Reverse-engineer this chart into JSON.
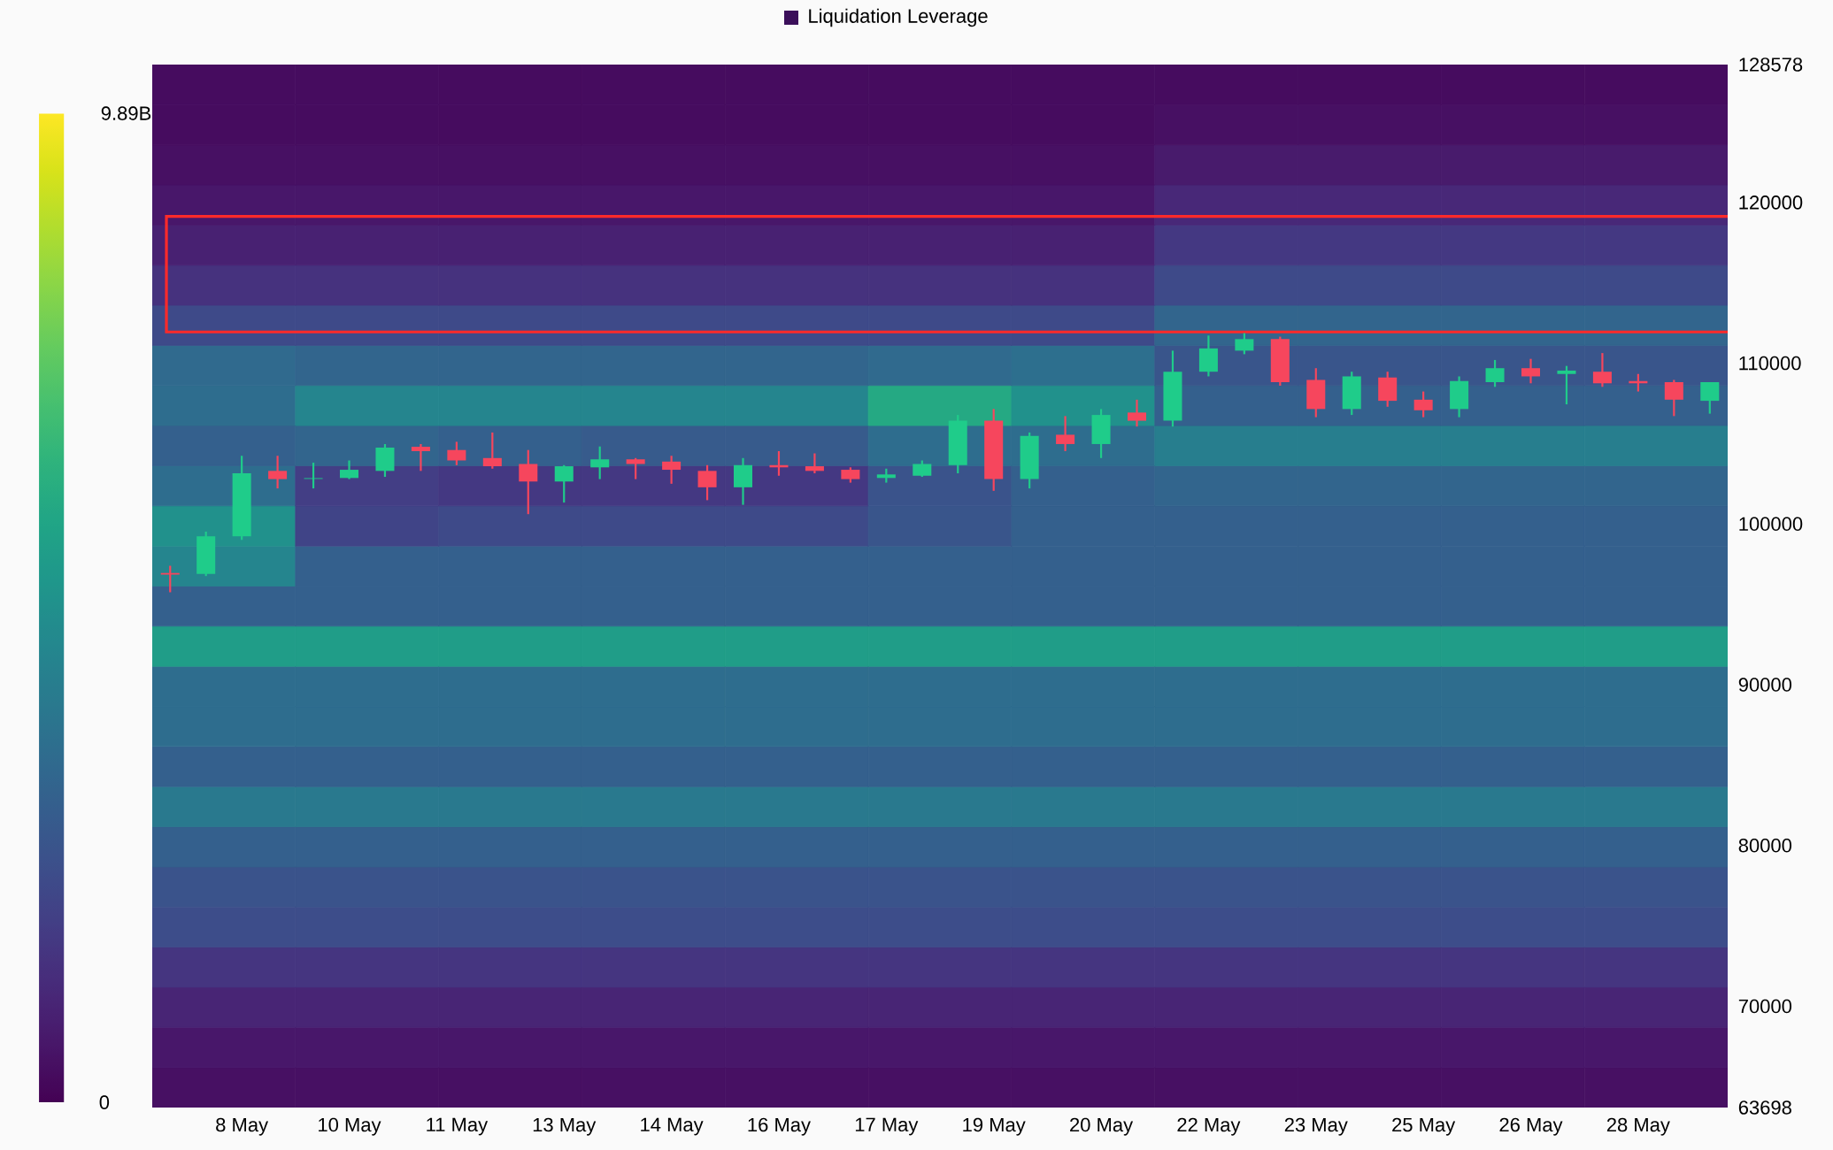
{
  "chart_data": [
    {
      "type": "heatmap",
      "legend_title": "Liquidation Leverage",
      "tick_labels": false,
      "categories": [
        null,
        null,
        null,
        null,
        null,
        null,
        null,
        null,
        null,
        null,
        null
      ],
      "y_categories": [
        null,
        null,
        null,
        null,
        null,
        null,
        null,
        null,
        null,
        null,
        null,
        null,
        null,
        null,
        null,
        null,
        null,
        null,
        null,
        null,
        null,
        null,
        null,
        null,
        null,
        null
      ],
      "cells": [
        [
          0.3,
          0.3,
          0.3,
          0.3,
          0.3,
          0.3,
          0.3,
          0.3,
          0.3,
          0.3,
          0.3
        ],
        [
          0.3,
          0.3,
          0.3,
          0.3,
          0.3,
          0.3,
          0.3,
          0.4,
          0.4,
          0.4,
          0.4
        ],
        [
          0.4,
          0.4,
          0.4,
          0.4,
          0.4,
          0.4,
          0.4,
          0.7,
          0.7,
          0.7,
          0.7
        ],
        [
          0.6,
          0.6,
          0.6,
          0.6,
          0.6,
          0.6,
          0.6,
          1.1,
          1.1,
          1.1,
          1.1
        ],
        [
          0.9,
          0.9,
          0.9,
          0.9,
          0.9,
          0.9,
          0.9,
          1.6,
          1.6,
          1.6,
          1.6
        ],
        [
          1.4,
          1.4,
          1.4,
          1.4,
          1.4,
          1.4,
          1.4,
          2.2,
          2.2,
          2.2,
          2.2
        ],
        [
          2.2,
          2.2,
          2.2,
          2.2,
          2.2,
          2.2,
          2.2,
          3.2,
          3.2,
          3.2,
          3.2
        ],
        [
          3.4,
          3.2,
          3.2,
          3.2,
          3.2,
          3.4,
          3.6,
          2.6,
          2.6,
          2.6,
          2.6
        ],
        [
          3.5,
          4.5,
          4.5,
          4.5,
          4.5,
          6.0,
          5.0,
          3.0,
          3.0,
          3.0,
          3.0
        ],
        [
          3.0,
          3.2,
          3.0,
          2.8,
          2.8,
          3.5,
          3.5,
          4.2,
          4.2,
          4.2,
          4.2
        ],
        [
          3.5,
          1.8,
          1.6,
          1.6,
          1.6,
          2.5,
          3.0,
          3.2,
          3.2,
          3.2,
          3.2
        ],
        [
          5.0,
          2.0,
          2.2,
          2.2,
          2.2,
          2.6,
          3.0,
          3.0,
          3.0,
          3.0,
          3.0
        ],
        [
          4.5,
          3.0,
          3.0,
          3.0,
          3.0,
          3.0,
          3.0,
          3.0,
          3.0,
          3.0,
          3.0
        ],
        [
          3.0,
          3.0,
          3.0,
          3.0,
          3.0,
          3.0,
          3.0,
          3.0,
          3.0,
          3.0,
          3.0
        ],
        [
          5.5,
          5.5,
          5.5,
          5.5,
          5.5,
          5.5,
          5.5,
          5.5,
          5.5,
          5.5,
          5.5
        ],
        [
          3.5,
          3.5,
          3.5,
          3.5,
          3.5,
          3.5,
          3.5,
          3.5,
          3.5,
          3.5,
          3.5
        ],
        [
          3.5,
          3.5,
          3.5,
          3.5,
          3.5,
          3.5,
          3.5,
          3.5,
          3.5,
          3.5,
          3.5
        ],
        [
          3.0,
          3.0,
          3.0,
          3.0,
          3.0,
          3.0,
          3.0,
          3.0,
          3.0,
          3.0,
          3.0
        ],
        [
          4.0,
          4.0,
          4.0,
          4.0,
          4.0,
          4.0,
          4.0,
          4.0,
          4.0,
          4.0,
          4.0
        ],
        [
          3.0,
          3.0,
          3.0,
          3.0,
          3.0,
          3.0,
          3.0,
          3.0,
          3.0,
          3.0,
          3.0
        ],
        [
          2.5,
          2.5,
          2.5,
          2.5,
          2.5,
          2.5,
          2.5,
          2.5,
          2.5,
          2.5,
          2.5
        ],
        [
          2.3,
          2.3,
          2.3,
          2.3,
          2.3,
          2.3,
          2.3,
          2.3,
          2.3,
          2.3,
          2.3
        ],
        [
          1.5,
          1.5,
          1.5,
          1.5,
          1.5,
          1.5,
          1.5,
          1.5,
          1.5,
          1.5,
          1.5
        ],
        [
          1.0,
          1.0,
          1.0,
          1.0,
          1.0,
          1.0,
          1.0,
          1.0,
          1.0,
          1.0,
          1.0
        ],
        [
          0.6,
          0.6,
          0.6,
          0.6,
          0.6,
          0.6,
          0.6,
          0.6,
          0.6,
          0.6,
          0.6
        ],
        [
          0.4,
          0.4,
          0.4,
          0.4,
          0.4,
          0.4,
          0.4,
          0.4,
          0.4,
          0.4,
          0.4
        ]
      ],
      "clim": [
        0,
        9.89
      ],
      "cticks": [
        {
          "value": 0,
          "label": "0"
        },
        {
          "value": 9.89,
          "label": "9.89B"
        }
      ]
    },
    {
      "type": "candlestick",
      "categories": [
        null,
        null,
        "8 May",
        null,
        null,
        "10 May",
        null,
        null,
        "11 May",
        null,
        null,
        "13 May",
        null,
        null,
        "14 May",
        null,
        null,
        "16 May",
        null,
        null,
        "17 May",
        null,
        null,
        "19 May",
        null,
        null,
        "20 May",
        null,
        null,
        "22 May",
        null,
        null,
        "23 May",
        null,
        null,
        "25 May",
        null,
        null,
        "26 May",
        null,
        null,
        "28 May",
        null,
        null
      ],
      "ohlc": [
        [
          96950,
          97400,
          95750,
          96850
        ],
        [
          96900,
          99520,
          96760,
          99230
        ],
        [
          99230,
          104240,
          99010,
          103150
        ],
        [
          103300,
          104240,
          102210,
          102790
        ],
        [
          102800,
          103810,
          102210,
          102850
        ],
        [
          102860,
          103950,
          102790,
          103370
        ],
        [
          103300,
          104970,
          102930,
          104750
        ],
        [
          104800,
          104970,
          103300,
          104530
        ],
        [
          104600,
          105110,
          103660,
          103950
        ],
        [
          104100,
          105690,
          103440,
          103590
        ],
        [
          103730,
          104600,
          100610,
          102640
        ],
        [
          102640,
          103660,
          101330,
          103590
        ],
        [
          103520,
          104820,
          102790,
          104020
        ],
        [
          104020,
          104100,
          102790,
          103730
        ],
        [
          103880,
          104240,
          102500,
          103370
        ],
        [
          103300,
          103660,
          101480,
          102280
        ],
        [
          102280,
          104100,
          101190,
          103660
        ],
        [
          103660,
          104530,
          103000,
          103520
        ],
        [
          103590,
          104390,
          103150,
          103300
        ],
        [
          103370,
          103520,
          102570,
          102790
        ],
        [
          102860,
          103440,
          102570,
          103080
        ],
        [
          103000,
          103950,
          102930,
          103730
        ],
        [
          103660,
          106780,
          103150,
          106420
        ],
        [
          106420,
          107150,
          102060,
          102790
        ],
        [
          102790,
          105690,
          102210,
          105480
        ],
        [
          105550,
          106710,
          104530,
          104970
        ],
        [
          104970,
          107150,
          104100,
          106780
        ],
        [
          106930,
          107730,
          106060,
          106420
        ],
        [
          106420,
          110780,
          106060,
          109470
        ],
        [
          109470,
          111720,
          109180,
          110920
        ],
        [
          110780,
          111870,
          110560,
          111500
        ],
        [
          111500,
          111650,
          108600,
          108820
        ],
        [
          108960,
          109690,
          106640,
          107150
        ],
        [
          107150,
          109470,
          106780,
          109180
        ],
        [
          109110,
          109470,
          107290,
          107660
        ],
        [
          107730,
          108240,
          106640,
          107070
        ],
        [
          107150,
          109180,
          106640,
          108890
        ],
        [
          108820,
          110200,
          108530,
          109690
        ],
        [
          109690,
          110270,
          108750,
          109180
        ],
        [
          109330,
          109830,
          107440,
          109540
        ],
        [
          109470,
          110630,
          108530,
          108750
        ],
        [
          108890,
          109330,
          108240,
          108750
        ],
        [
          108820,
          108960,
          106710,
          107730
        ],
        [
          107660,
          108820,
          106860,
          108820
        ]
      ],
      "colors": [
        "#f6465d",
        "#1fcc8a",
        "#1fcc8a",
        "#f6465d",
        "#1fcc8a",
        "#1fcc8a",
        "#1fcc8a",
        "#f6465d",
        "#f6465d",
        "#f6465d",
        "#f6465d",
        "#1fcc8a",
        "#1fcc8a",
        "#f6465d",
        "#f6465d",
        "#f6465d",
        "#1fcc8a",
        "#f6465d",
        "#f6465d",
        "#f6465d",
        "#1fcc8a",
        "#1fcc8a",
        "#1fcc8a",
        "#f6465d",
        "#1fcc8a",
        "#f6465d",
        "#1fcc8a",
        "#f6465d",
        "#1fcc8a",
        "#1fcc8a",
        "#1fcc8a",
        "#f6465d",
        "#f6465d",
        "#1fcc8a",
        "#f6465d",
        "#f6465d",
        "#1fcc8a",
        "#1fcc8a",
        "#f6465d",
        "#1fcc8a",
        "#f6465d",
        "#f6465d",
        "#f6465d",
        "#1fcc8a"
      ],
      "ylim": [
        63698,
        128578
      ],
      "yticks": [
        63698,
        70000,
        80000,
        90000,
        100000,
        110000,
        120000,
        128578
      ]
    }
  ]
}
